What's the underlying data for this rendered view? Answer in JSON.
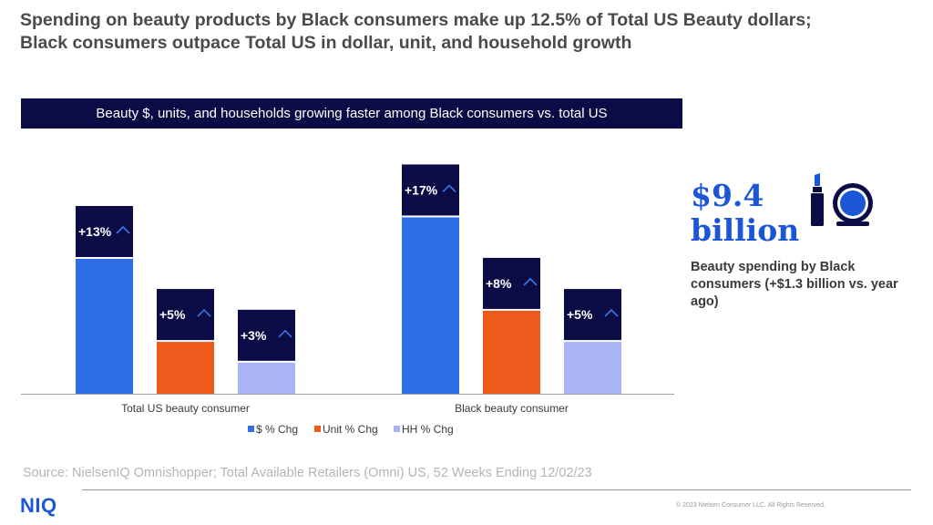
{
  "title": {
    "line1": "Spending on beauty products by Black consumers make up 12.5% of Total US Beauty dollars;",
    "line2": "Black consumers outpace Total US in dollar, unit, and household growth"
  },
  "banner": "Beauty $, units, and households growing faster among Black consumers vs. total US",
  "chart_data": {
    "type": "bar",
    "categories": [
      "Total US beauty consumer",
      "Black beauty consumer"
    ],
    "series": [
      {
        "name": "$ % Chg",
        "values": [
          13,
          17
        ],
        "labels": [
          "+13%",
          "+17%"
        ],
        "color": "#2e6fe6"
      },
      {
        "name": "Unit % Chg",
        "values": [
          5,
          8
        ],
        "labels": [
          "+5%",
          "+8%"
        ],
        "color": "#ee5a1c"
      },
      {
        "name": "HH % Chg",
        "values": [
          3,
          5
        ],
        "labels": [
          "+3%",
          "+5%"
        ],
        "color": "#a8b4f4"
      }
    ],
    "ylim": [
      0,
      18
    ],
    "legend": "bottom",
    "grid": false
  },
  "side": {
    "big_number_line1": "$9.4",
    "big_number_line2": "billion",
    "description": "Beauty spending by Black consumers (+$1.3 billion vs. year ago)",
    "icon": "lipstick-compact-icon",
    "accent": "#1a56d6"
  },
  "source": "Source: NielsenIQ Omnishopper; Total Available Retailers (Omni) US, 52 Weeks Ending 12/02/23",
  "footer": {
    "logo": "NIQ",
    "copyright": "© 2023 Nielsen Consumer LLC. All Rights Reserved."
  }
}
